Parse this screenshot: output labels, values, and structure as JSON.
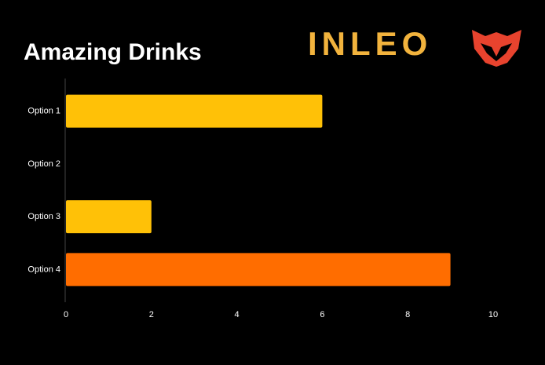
{
  "chart_data": {
    "type": "hbar",
    "title": "Amazing Drinks",
    "logo": "INLEO",
    "categories": [
      "Option 1",
      "Option 2",
      "Option 3",
      "Option 4"
    ],
    "values": [
      6,
      0,
      2,
      9
    ],
    "colors": [
      "#FFC107",
      "#FFC107",
      "#FFC107",
      "#FF6D00"
    ],
    "xlim": [
      0,
      10
    ],
    "xticks": [
      0,
      2,
      4,
      6,
      8,
      10
    ],
    "grid": false
  }
}
